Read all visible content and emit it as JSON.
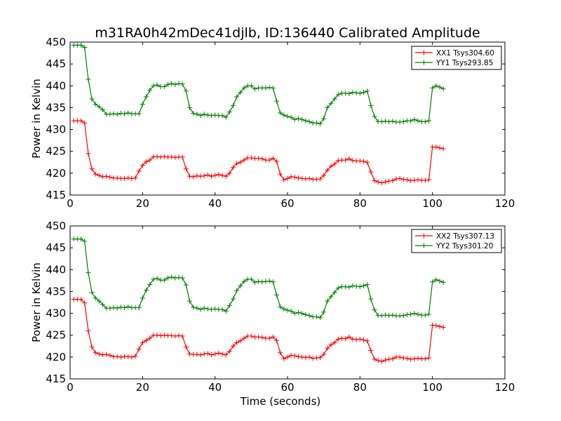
{
  "figure": {
    "title": "m31RA0h42mDec41djlb, ID:136440 Calibrated Amplitude"
  },
  "chart_data": [
    {
      "type": "line",
      "title": "m31RA0h42mDec41djlb, ID:136440 Calibrated Amplitude",
      "xlabel": "",
      "ylabel": "Power in Kelvin",
      "xlim": [
        0,
        120
      ],
      "ylim": [
        415,
        450
      ],
      "xticks": [
        "0",
        "20",
        "40",
        "60",
        "80",
        "100",
        "120"
      ],
      "yticks": [
        "415",
        "420",
        "425",
        "430",
        "435",
        "440",
        "445",
        "450"
      ],
      "grid": false,
      "legend": "top-right",
      "series": [
        {
          "name": "XX1 Tsys304.60",
          "color": "#ff0000",
          "x": [
            1,
            2,
            3,
            4,
            5,
            6,
            7,
            8,
            9,
            10,
            11,
            12,
            13,
            14,
            15,
            16,
            17,
            18,
            19,
            20,
            21,
            22,
            23,
            24,
            25,
            26,
            27,
            28,
            29,
            30,
            31,
            32,
            33,
            34,
            35,
            36,
            37,
            38,
            39,
            40,
            41,
            42,
            43,
            44,
            45,
            46,
            47,
            48,
            49,
            50,
            51,
            52,
            53,
            54,
            55,
            56,
            57,
            58,
            59,
            60,
            61,
            62,
            63,
            64,
            65,
            66,
            67,
            68,
            69,
            70,
            71,
            72,
            73,
            74,
            75,
            76,
            77,
            78,
            79,
            80,
            81,
            82,
            83,
            84,
            85,
            86,
            87,
            88,
            89,
            90,
            91,
            92,
            93,
            94,
            95,
            96,
            97,
            98,
            99,
            100,
            101,
            102,
            103
          ],
          "y": [
            432.0,
            432.0,
            432.0,
            431.5,
            424.5,
            421.0,
            419.8,
            419.5,
            419.2,
            419.3,
            419.1,
            418.9,
            418.9,
            418.8,
            418.8,
            418.9,
            418.8,
            418.9,
            420.5,
            421.8,
            422.6,
            423.0,
            423.8,
            423.8,
            423.7,
            423.8,
            423.7,
            423.7,
            423.6,
            423.7,
            423.7,
            421.0,
            419.3,
            419.2,
            419.4,
            419.3,
            419.4,
            419.6,
            419.3,
            419.5,
            419.7,
            419.5,
            419.3,
            420.0,
            421.3,
            422.2,
            422.5,
            423.0,
            423.5,
            423.5,
            423.4,
            423.4,
            423.3,
            423.0,
            423.0,
            423.4,
            422.7,
            419.8,
            418.5,
            418.8,
            419.2,
            419.1,
            418.9,
            418.8,
            418.7,
            418.8,
            418.6,
            418.6,
            418.7,
            419.5,
            420.7,
            421.6,
            422.1,
            422.9,
            423.0,
            423.0,
            423.3,
            422.9,
            422.8,
            422.8,
            422.7,
            422.5,
            420.3,
            418.3,
            418.0,
            417.8,
            418.0,
            418.2,
            418.3,
            418.7,
            418.8,
            418.6,
            418.5,
            418.3,
            418.4,
            418.5,
            418.4,
            418.4,
            418.5,
            426.0,
            426.0,
            425.8,
            425.6
          ]
        },
        {
          "name": "YY1 Tsys293.85",
          "color": "#008000",
          "x": [
            1,
            2,
            3,
            4,
            5,
            6,
            7,
            8,
            9,
            10,
            11,
            12,
            13,
            14,
            15,
            16,
            17,
            18,
            19,
            20,
            21,
            22,
            23,
            24,
            25,
            26,
            27,
            28,
            29,
            30,
            31,
            32,
            33,
            34,
            35,
            36,
            37,
            38,
            39,
            40,
            41,
            42,
            43,
            44,
            45,
            46,
            47,
            48,
            49,
            50,
            51,
            52,
            53,
            54,
            55,
            56,
            57,
            58,
            59,
            60,
            61,
            62,
            63,
            64,
            65,
            66,
            67,
            68,
            69,
            70,
            71,
            72,
            73,
            74,
            75,
            76,
            77,
            78,
            79,
            80,
            81,
            82,
            83,
            84,
            85,
            86,
            87,
            88,
            89,
            90,
            91,
            92,
            93,
            94,
            95,
            96,
            97,
            98,
            99,
            100,
            101,
            102,
            103
          ],
          "y": [
            449.3,
            449.3,
            449.3,
            448.8,
            441.5,
            437.0,
            435.8,
            435.2,
            434.5,
            433.5,
            433.5,
            433.6,
            433.5,
            433.7,
            433.6,
            433.8,
            433.6,
            433.6,
            433.6,
            435.8,
            437.5,
            439.0,
            440.0,
            440.2,
            439.8,
            439.8,
            440.3,
            440.5,
            440.3,
            440.5,
            440.4,
            438.8,
            435.0,
            433.7,
            433.5,
            433.2,
            433.5,
            433.3,
            433.2,
            433.3,
            433.2,
            433.2,
            432.8,
            434.0,
            435.5,
            437.5,
            438.5,
            439.5,
            440.0,
            440.0,
            439.3,
            439.5,
            439.5,
            439.5,
            439.6,
            439.5,
            436.5,
            433.8,
            433.3,
            433.0,
            432.8,
            432.3,
            432.5,
            432.3,
            432.0,
            431.8,
            431.5,
            431.5,
            431.3,
            432.5,
            435.0,
            436.0,
            437.0,
            438.0,
            438.3,
            438.3,
            438.2,
            438.5,
            438.4,
            438.3,
            438.5,
            438.8,
            435.5,
            433.0,
            431.8,
            431.8,
            431.9,
            431.8,
            431.9,
            431.7,
            431.7,
            431.8,
            432.0,
            432.0,
            432.3,
            432.0,
            431.8,
            431.8,
            432.0,
            439.5,
            440.0,
            439.7,
            439.3
          ]
        }
      ]
    },
    {
      "type": "line",
      "title": "",
      "xlabel": "Time (seconds)",
      "ylabel": "Power in Kelvin",
      "xlim": [
        0,
        120
      ],
      "ylim": [
        415,
        450
      ],
      "xticks": [
        "0",
        "20",
        "40",
        "60",
        "80",
        "100",
        "120"
      ],
      "yticks": [
        "415",
        "420",
        "425",
        "430",
        "435",
        "440",
        "445",
        "450"
      ],
      "grid": false,
      "legend": "top-right",
      "series": [
        {
          "name": "XX2 Tsys307.13",
          "color": "#ff0000",
          "x": [
            1,
            2,
            3,
            4,
            5,
            6,
            7,
            8,
            9,
            10,
            11,
            12,
            13,
            14,
            15,
            16,
            17,
            18,
            19,
            20,
            21,
            22,
            23,
            24,
            25,
            26,
            27,
            28,
            29,
            30,
            31,
            32,
            33,
            34,
            35,
            36,
            37,
            38,
            39,
            40,
            41,
            42,
            43,
            44,
            45,
            46,
            47,
            48,
            49,
            50,
            51,
            52,
            53,
            54,
            55,
            56,
            57,
            58,
            59,
            60,
            61,
            62,
            63,
            64,
            65,
            66,
            67,
            68,
            69,
            70,
            71,
            72,
            73,
            74,
            75,
            76,
            77,
            78,
            79,
            80,
            81,
            82,
            83,
            84,
            85,
            86,
            87,
            88,
            89,
            90,
            91,
            92,
            93,
            94,
            95,
            96,
            97,
            98,
            99,
            100,
            101,
            102,
            103
          ],
          "y": [
            433.2,
            433.2,
            433.2,
            432.4,
            426.0,
            422.3,
            421.0,
            420.7,
            420.5,
            420.6,
            420.4,
            420.1,
            420.1,
            420.0,
            420.1,
            420.1,
            420.0,
            420.2,
            421.8,
            423.3,
            423.8,
            424.3,
            425.0,
            425.0,
            424.9,
            425.0,
            424.9,
            424.9,
            424.8,
            424.9,
            424.8,
            422.3,
            420.7,
            420.6,
            420.6,
            420.5,
            420.7,
            420.8,
            420.5,
            420.7,
            420.9,
            420.7,
            420.5,
            421.3,
            422.5,
            423.3,
            423.7,
            424.3,
            424.8,
            424.8,
            424.6,
            424.6,
            424.5,
            424.3,
            424.3,
            424.6,
            423.8,
            421.0,
            419.6,
            420.0,
            420.4,
            420.3,
            420.1,
            420.0,
            419.9,
            420.0,
            419.7,
            419.8,
            419.9,
            420.6,
            422.0,
            422.8,
            423.3,
            424.1,
            424.3,
            424.2,
            424.6,
            424.1,
            424.0,
            424.1,
            423.9,
            423.7,
            421.5,
            419.5,
            419.2,
            419.0,
            419.3,
            419.5,
            419.6,
            420.0,
            420.0,
            419.8,
            419.7,
            419.5,
            419.6,
            419.7,
            419.6,
            419.6,
            419.8,
            427.3,
            427.2,
            427.0,
            426.8
          ]
        },
        {
          "name": "YY2 Tsys301.20",
          "color": "#008000",
          "x": [
            1,
            2,
            3,
            4,
            5,
            6,
            7,
            8,
            9,
            10,
            11,
            12,
            13,
            14,
            15,
            16,
            17,
            18,
            19,
            20,
            21,
            22,
            23,
            24,
            25,
            26,
            27,
            28,
            29,
            30,
            31,
            32,
            33,
            34,
            35,
            36,
            37,
            38,
            39,
            40,
            41,
            42,
            43,
            44,
            45,
            46,
            47,
            48,
            49,
            50,
            51,
            52,
            53,
            54,
            55,
            56,
            57,
            58,
            59,
            60,
            61,
            62,
            63,
            64,
            65,
            66,
            67,
            68,
            69,
            70,
            71,
            72,
            73,
            74,
            75,
            76,
            77,
            78,
            79,
            80,
            81,
            82,
            83,
            84,
            85,
            86,
            87,
            88,
            89,
            90,
            91,
            92,
            93,
            94,
            95,
            96,
            97,
            98,
            99,
            100,
            101,
            102,
            103
          ],
          "y": [
            447.0,
            447.0,
            447.0,
            446.5,
            439.3,
            434.8,
            433.5,
            432.8,
            432.0,
            431.2,
            431.2,
            431.3,
            431.2,
            431.4,
            431.3,
            431.5,
            431.3,
            431.3,
            431.3,
            433.5,
            435.3,
            436.6,
            437.8,
            438.0,
            437.6,
            437.6,
            438.1,
            438.3,
            438.1,
            438.2,
            438.1,
            436.5,
            432.8,
            431.4,
            431.2,
            430.9,
            431.2,
            431.0,
            430.9,
            431.0,
            430.9,
            430.9,
            430.5,
            431.8,
            433.3,
            435.2,
            436.3,
            437.3,
            437.8,
            437.8,
            437.1,
            437.3,
            437.2,
            437.3,
            437.4,
            437.2,
            434.2,
            431.5,
            431.0,
            430.7,
            430.5,
            430.0,
            430.2,
            430.0,
            429.7,
            429.5,
            429.2,
            429.2,
            429.0,
            430.3,
            432.8,
            433.8,
            434.8,
            435.8,
            436.1,
            436.1,
            436.0,
            436.3,
            436.2,
            436.1,
            436.3,
            436.6,
            433.3,
            430.8,
            429.5,
            429.5,
            429.6,
            429.5,
            429.6,
            429.4,
            429.4,
            429.5,
            429.7,
            429.8,
            430.0,
            429.8,
            429.6,
            429.6,
            429.8,
            437.2,
            437.7,
            437.4,
            437.1
          ]
        }
      ]
    }
  ]
}
